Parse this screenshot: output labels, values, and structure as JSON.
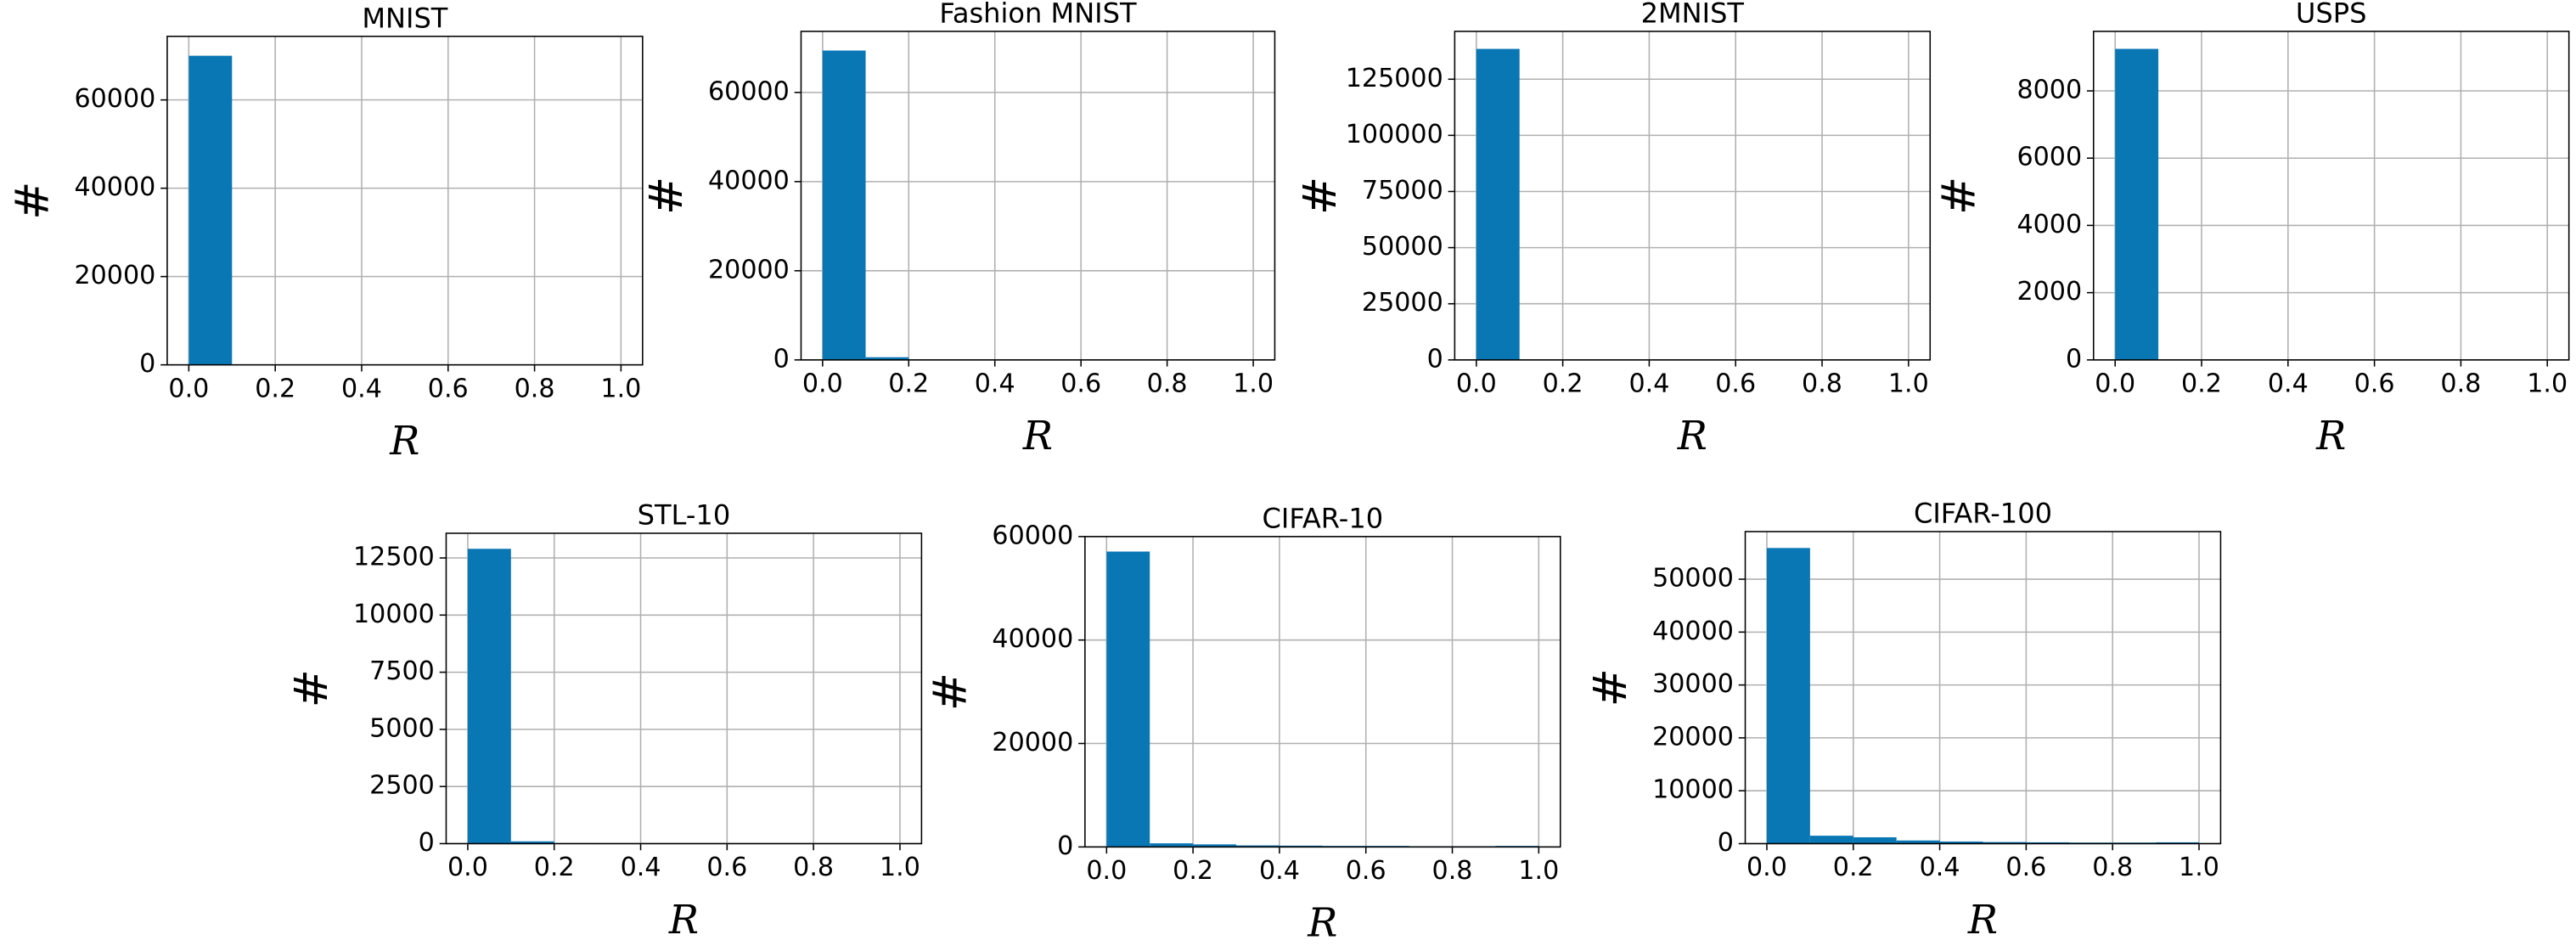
{
  "chart_data": [
    {
      "type": "histogram",
      "title": "MNIST",
      "xlabel": "R",
      "ylabel": "#",
      "color": "#0a77b5",
      "grid": true,
      "bins": [
        0,
        0.1,
        0.2,
        0.3,
        0.4,
        0.5,
        0.6,
        0.7,
        0.8,
        0.9,
        1.0
      ],
      "counts": [
        70000,
        60,
        20,
        10,
        5,
        5,
        3,
        2,
        2,
        2
      ],
      "xlim": [
        -0.05,
        1.05
      ],
      "ylim": [
        0,
        74400
      ],
      "xticks": [
        {
          "value": 0,
          "label": "0.0"
        },
        0.2,
        0.4,
        0.6,
        0.8,
        {
          "value": 1,
          "label": "1.0"
        }
      ],
      "yticks": [
        0,
        20000,
        40000,
        60000
      ]
    },
    {
      "type": "histogram",
      "title": "Fashion MNIST",
      "xlabel": "R",
      "ylabel": "#",
      "color": "#0a77b5",
      "grid": true,
      "bins": [
        0,
        0.1,
        0.2,
        0.3,
        0.4,
        0.5,
        0.6,
        0.7,
        0.8,
        0.9,
        1.0
      ],
      "counts": [
        69400,
        600,
        50,
        20,
        10,
        5,
        3,
        2,
        2,
        2
      ],
      "xlim": [
        -0.05,
        1.05
      ],
      "ylim": [
        0,
        73700
      ],
      "xticks": [
        {
          "value": 0,
          "label": "0.0"
        },
        0.2,
        0.4,
        0.6,
        0.8,
        {
          "value": 1,
          "label": "1.0"
        }
      ],
      "yticks": [
        0,
        20000,
        40000,
        60000
      ]
    },
    {
      "type": "histogram",
      "title": "2MNIST",
      "xlabel": "R",
      "ylabel": "#",
      "color": "#0a77b5",
      "grid": true,
      "bins": [
        0,
        0.1,
        0.2,
        0.3,
        0.4,
        0.5,
        0.6,
        0.7,
        0.8,
        0.9,
        1.0
      ],
      "counts": [
        138500,
        150,
        40,
        20,
        10,
        5,
        3,
        2,
        2,
        2
      ],
      "xlim": [
        -0.05,
        1.05
      ],
      "ylim": [
        0,
        146300
      ],
      "xticks": [
        {
          "value": 0,
          "label": "0.0"
        },
        0.2,
        0.4,
        0.6,
        0.8,
        {
          "value": 1,
          "label": "1.0"
        }
      ],
      "yticks": [
        0,
        25000,
        50000,
        75000,
        100000,
        125000
      ]
    },
    {
      "type": "histogram",
      "title": "USPS",
      "xlabel": "R",
      "ylabel": "#",
      "color": "#0a77b5",
      "grid": true,
      "bins": [
        0,
        0.1,
        0.2,
        0.3,
        0.4,
        0.5,
        0.6,
        0.7,
        0.8,
        0.9,
        1.0
      ],
      "counts": [
        9250,
        5,
        2,
        1,
        1,
        0,
        0,
        0,
        0,
        0
      ],
      "xlim": [
        -0.05,
        1.05
      ],
      "ylim": [
        0,
        9770
      ],
      "xticks": [
        {
          "value": 0,
          "label": "0.0"
        },
        0.2,
        0.4,
        0.6,
        0.8,
        {
          "value": 1,
          "label": "1.0"
        }
      ],
      "yticks": [
        0,
        2000,
        4000,
        6000,
        8000
      ]
    },
    {
      "type": "histogram",
      "title": "STL-10",
      "xlabel": "R",
      "ylabel": "#",
      "color": "#0a77b5",
      "grid": true,
      "bins": [
        0,
        0.1,
        0.2,
        0.3,
        0.4,
        0.5,
        0.6,
        0.7,
        0.8,
        0.9,
        1.0
      ],
      "counts": [
        12900,
        100,
        20,
        10,
        5,
        3,
        2,
        2,
        1,
        1
      ],
      "xlim": [
        -0.05,
        1.05
      ],
      "ylim": [
        0,
        13580
      ],
      "xticks": [
        {
          "value": 0,
          "label": "0.0"
        },
        0.2,
        0.4,
        0.6,
        0.8,
        {
          "value": 1,
          "label": "1.0"
        }
      ],
      "yticks": [
        0,
        2500,
        5000,
        7500,
        10000,
        12500
      ]
    },
    {
      "type": "histogram",
      "title": "CIFAR-10",
      "xlabel": "R",
      "ylabel": "#",
      "color": "#0a77b5",
      "grid": true,
      "bins": [
        0,
        0.1,
        0.2,
        0.3,
        0.4,
        0.5,
        0.6,
        0.7,
        0.8,
        0.9,
        1.0
      ],
      "counts": [
        57100,
        700,
        500,
        300,
        250,
        200,
        200,
        150,
        150,
        200
      ],
      "xlim": [
        -0.05,
        1.05
      ],
      "ylim": [
        0,
        60000
      ],
      "xticks": [
        {
          "value": 0,
          "label": "0.0"
        },
        0.2,
        0.4,
        0.6,
        0.8,
        {
          "value": 1,
          "label": "1.0"
        }
      ],
      "yticks": [
        0,
        20000,
        40000,
        60000
      ]
    },
    {
      "type": "histogram",
      "title": "CIFAR-100",
      "xlabel": "R",
      "ylabel": "#",
      "color": "#0a77b5",
      "grid": true,
      "bins": [
        0,
        0.1,
        0.2,
        0.3,
        0.4,
        0.5,
        0.6,
        0.7,
        0.8,
        0.9,
        1.0
      ],
      "counts": [
        55900,
        1500,
        1200,
        600,
        400,
        300,
        250,
        200,
        200,
        250
      ],
      "xlim": [
        -0.05,
        1.05
      ],
      "ylim": [
        0,
        59000
      ],
      "xticks": [
        {
          "value": 0,
          "label": "0.0"
        },
        0.2,
        0.4,
        0.6,
        0.8,
        {
          "value": 1,
          "label": "1.0"
        }
      ],
      "yticks": [
        0,
        10000,
        20000,
        30000,
        40000,
        50000
      ]
    }
  ]
}
